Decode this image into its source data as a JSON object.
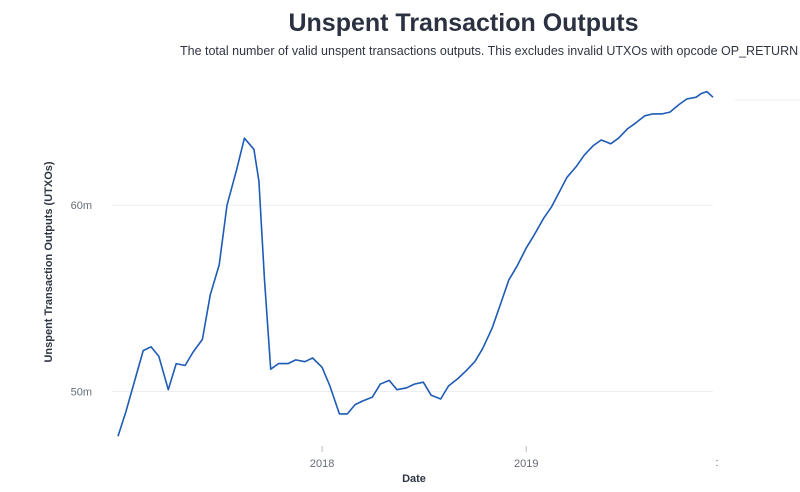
{
  "chart_data": {
    "type": "line",
    "title": "Unspent Transaction Outputs",
    "subtitle": "The total number of valid unspent transactions outputs. This excludes invalid UTXOs with opcode OP_RETURN",
    "xlabel": "Date",
    "ylabel": "Unspent Transaction Outputs (UTXOs)",
    "x_ticks": [
      "2018",
      "2019"
    ],
    "y_ticks": [
      {
        "value": 50000000,
        "label": "50m"
      },
      {
        "value": 60000000,
        "label": "60m"
      }
    ],
    "xlim": [
      "2017-01-01",
      "2019-12-01"
    ],
    "ylim": [
      47400000,
      66400000
    ],
    "grid": true,
    "legend": "none",
    "colors": {
      "line": "#1e5bb5"
    },
    "series": [
      {
        "x": [
          "2017-01-01",
          "2017-01-15",
          "2017-02-01",
          "2017-02-15",
          "2017-03-01",
          "2017-03-15",
          "2017-04-01",
          "2017-04-15",
          "2017-05-01",
          "2017-05-15",
          "2017-06-01",
          "2017-06-15",
          "2017-07-01",
          "2017-07-15",
          "2017-08-01",
          "2017-08-15",
          "2017-09-01",
          "2017-09-10",
          "2017-09-20",
          "2017-10-01",
          "2017-10-15",
          "2017-11-01",
          "2017-11-15",
          "2017-12-01",
          "2017-12-15",
          "2018-01-01",
          "2018-01-15",
          "2018-02-01",
          "2018-02-15",
          "2018-03-01",
          "2018-03-15",
          "2018-04-01",
          "2018-04-15",
          "2018-05-01",
          "2018-05-15",
          "2018-06-01",
          "2018-06-15",
          "2018-07-01",
          "2018-07-15",
          "2018-08-01",
          "2018-08-15",
          "2018-09-01",
          "2018-09-15",
          "2018-10-01",
          "2018-10-15",
          "2018-11-01",
          "2018-11-15",
          "2018-12-01",
          "2018-12-15",
          "2019-01-01",
          "2019-01-15",
          "2019-02-01",
          "2019-02-15",
          "2019-03-01",
          "2019-03-15",
          "2019-04-01",
          "2019-04-15",
          "2019-05-01",
          "2019-05-15",
          "2019-06-01",
          "2019-06-15",
          "2019-07-01",
          "2019-07-15",
          "2019-08-01",
          "2019-08-15",
          "2019-09-01",
          "2019-09-15",
          "2019-10-01",
          "2019-10-15",
          "2019-11-01",
          "2019-11-10",
          "2019-11-20",
          "2019-12-01"
        ],
        "y": [
          47600000,
          48900000,
          50700000,
          52200000,
          52400000,
          51900000,
          50100000,
          51500000,
          51400000,
          52100000,
          52800000,
          55200000,
          56800000,
          60000000,
          61900000,
          63600000,
          63000000,
          61300000,
          56000000,
          51200000,
          51500000,
          51500000,
          51700000,
          51600000,
          51800000,
          51300000,
          50300000,
          48800000,
          48800000,
          49300000,
          49500000,
          49700000,
          50400000,
          50600000,
          50100000,
          50200000,
          50400000,
          50500000,
          49800000,
          49600000,
          50300000,
          50700000,
          51100000,
          51600000,
          52300000,
          53400000,
          54600000,
          56000000,
          56700000,
          57700000,
          58400000,
          59300000,
          59900000,
          60700000,
          61500000,
          62100000,
          62700000,
          63200000,
          63500000,
          63300000,
          63600000,
          64100000,
          64400000,
          64800000,
          64900000,
          64900000,
          65000000,
          65400000,
          65700000,
          65800000,
          66000000,
          66100000,
          65800000
        ]
      }
    ]
  }
}
